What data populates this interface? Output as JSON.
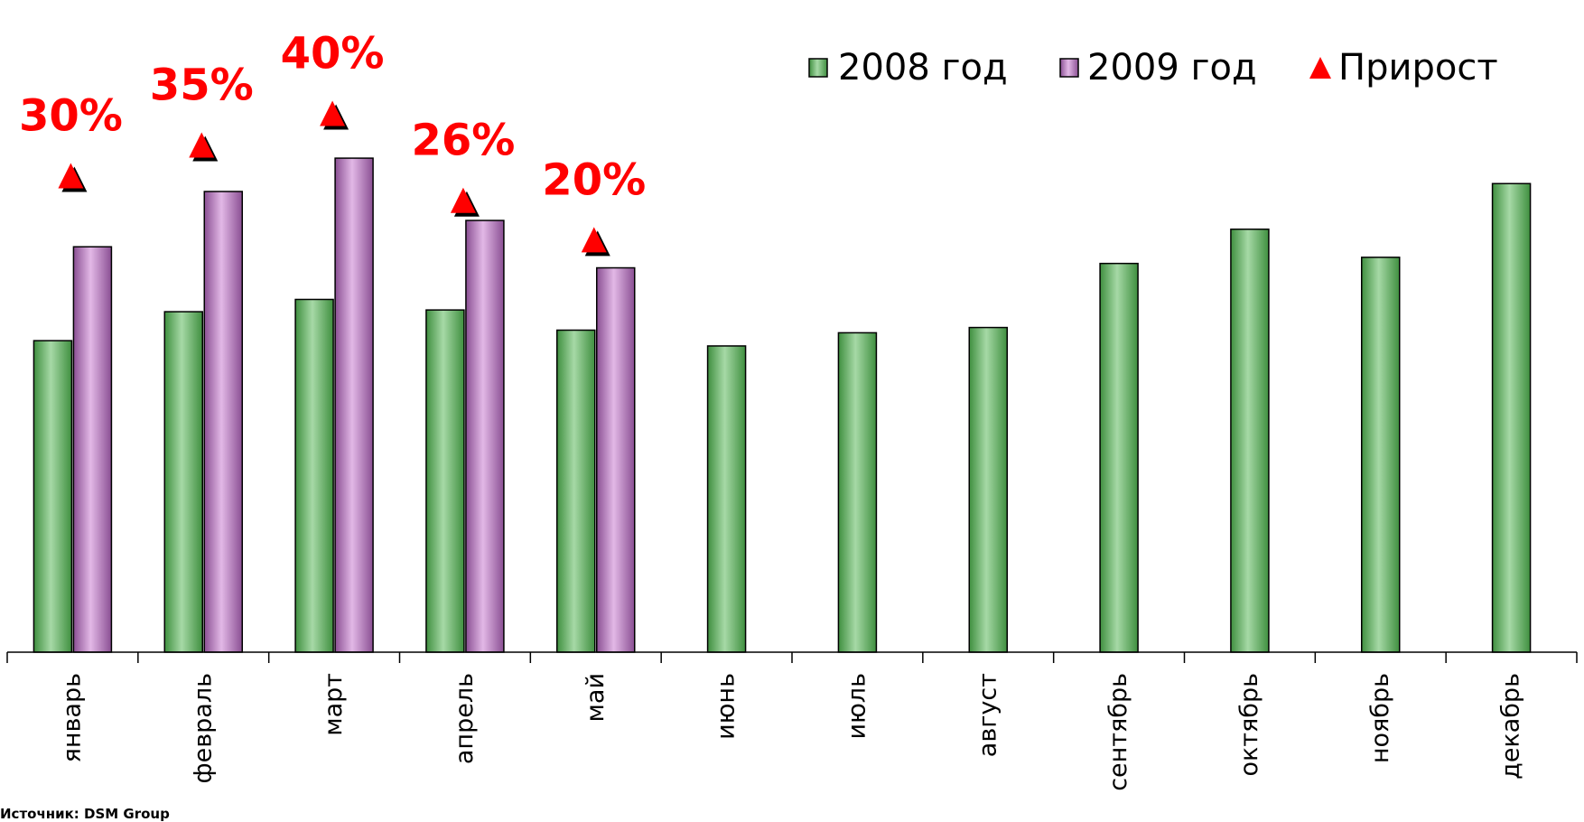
{
  "chart_data": {
    "type": "bar",
    "categories": [
      "январь",
      "февраль",
      "март",
      "апрель",
      "май",
      "июнь",
      "июль",
      "август",
      "сентябрь",
      "октябрь",
      "ноябрь",
      "декабрь"
    ],
    "series": [
      {
        "name": "2008 год",
        "values": [
          35.5,
          38.8,
          40.2,
          39.0,
          36.7,
          34.9,
          36.4,
          37.0,
          44.3,
          48.2,
          45.0,
          53.4
        ]
      },
      {
        "name": "2009 год",
        "values": [
          46.2,
          52.5,
          56.3,
          49.2,
          43.8,
          null,
          null,
          null,
          null,
          null,
          null,
          null
        ]
      }
    ],
    "growth": {
      "name": "Прирост",
      "labels": [
        "30%",
        "35%",
        "40%",
        "26%",
        "20%",
        null,
        null,
        null,
        null,
        null,
        null,
        null
      ],
      "marker_values": [
        54.3,
        57.8,
        61.4,
        51.5,
        47.0,
        null,
        null,
        null,
        null,
        null,
        null,
        null
      ]
    },
    "ylim": [
      0,
      70
    ],
    "legend_position": "top-right",
    "grid": false,
    "colors": {
      "s2008": "#6fbf6f",
      "s2009": "#c48ac9",
      "growth": "#ff0000"
    }
  },
  "source_text": "Источник: DSM Group"
}
